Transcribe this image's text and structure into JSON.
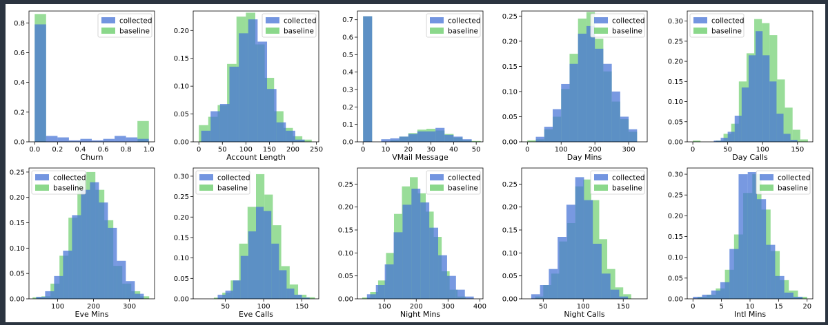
{
  "chart_data": [
    {
      "type": "bar",
      "xlabel": "Churn",
      "xlim": [
        -0.05,
        1.05
      ],
      "ylim": [
        0,
        0.88
      ],
      "xticks": [
        0.0,
        0.2,
        0.4,
        0.6,
        0.8,
        1.0
      ],
      "xtick_labels": [
        "0.0",
        "0.2",
        "0.4",
        "0.6",
        "0.8",
        "1.0"
      ],
      "yticks": [
        0.0,
        0.2,
        0.4,
        0.6,
        0.8
      ],
      "ytick_labels": [
        "0.0",
        "0.2",
        "0.4",
        "0.6",
        "0.8"
      ],
      "legend": "top-right",
      "series": [
        {
          "name": "collected",
          "bin_width": 0.1,
          "bins": [
            0,
            0.1,
            0.2,
            0.3,
            0.4,
            0.5,
            0.6,
            0.7,
            0.8,
            0.9
          ],
          "values": [
            0.79,
            0.04,
            0.03,
            0.01,
            0.02,
            0.01,
            0.02,
            0.04,
            0.03,
            0.02
          ]
        },
        {
          "name": "baseline",
          "bin_width": 0.1,
          "bins": [
            0,
            0.1,
            0.2,
            0.3,
            0.4,
            0.5,
            0.6,
            0.7,
            0.8,
            0.9
          ],
          "values": [
            0.86,
            0,
            0,
            0,
            0,
            0,
            0,
            0,
            0,
            0.14
          ]
        }
      ]
    },
    {
      "type": "bar",
      "xlabel": "Account Length",
      "xlim": [
        -12,
        255
      ],
      "ylim": [
        0,
        0.235
      ],
      "xticks": [
        0,
        50,
        100,
        150,
        200,
        250
      ],
      "xtick_labels": [
        "0",
        "50",
        "100",
        "150",
        "200",
        "250"
      ],
      "yticks": [
        0.0,
        0.05,
        0.1,
        0.15,
        0.2
      ],
      "ytick_labels": [
        "0.00",
        "0.05",
        "0.10",
        "0.15",
        "0.20"
      ],
      "legend": "top-right",
      "series": [
        {
          "name": "collected",
          "bin_width": 20,
          "bins": [
            5,
            25,
            45,
            65,
            85,
            105,
            125,
            145,
            165,
            185,
            205
          ],
          "values": [
            0.02,
            0.055,
            0.068,
            0.135,
            0.195,
            0.22,
            0.18,
            0.095,
            0.035,
            0.02,
            0.004
          ]
        },
        {
          "name": "baseline",
          "bin_width": 20,
          "bins": [
            0,
            20,
            40,
            60,
            80,
            100,
            120,
            140,
            160,
            180,
            200,
            220
          ],
          "values": [
            0.03,
            0.045,
            0.066,
            0.14,
            0.225,
            0.232,
            0.175,
            0.115,
            0.055,
            0.025,
            0.01,
            0.004
          ]
        }
      ]
    },
    {
      "type": "bar",
      "xlabel": "VMail Message",
      "xlim": [
        -2.5,
        53
      ],
      "ylim": [
        0,
        0.75
      ],
      "xticks": [
        0,
        10,
        20,
        30,
        40,
        50
      ],
      "xtick_labels": [
        "0",
        "10",
        "20",
        "30",
        "40",
        "50"
      ],
      "yticks": [
        0.0,
        0.1,
        0.2,
        0.3,
        0.4,
        0.5,
        0.6,
        0.7
      ],
      "ytick_labels": [
        "0.0",
        "0.1",
        "0.2",
        "0.3",
        "0.4",
        "0.5",
        "0.6",
        "0.7"
      ],
      "legend": "top-right",
      "series": [
        {
          "name": "collected",
          "bin_width": 4,
          "bins": [
            0,
            4,
            8,
            12,
            16,
            20,
            24,
            28,
            32,
            36,
            40,
            44
          ],
          "values": [
            0.72,
            0,
            0.015,
            0.02,
            0.03,
            0.045,
            0.06,
            0.06,
            0.08,
            0.04,
            0.03,
            0.015
          ]
        },
        {
          "name": "baseline",
          "bin_width": 4,
          "bins": [
            0,
            4,
            8,
            12,
            16,
            20,
            24,
            28,
            32,
            36,
            40,
            44,
            48
          ],
          "values": [
            0.72,
            0,
            0,
            0.01,
            0.03,
            0.05,
            0.07,
            0.075,
            0.065,
            0.045,
            0.025,
            0.01,
            0.005
          ]
        }
      ]
    },
    {
      "type": "bar",
      "xlabel": "Day Mins",
      "xlim": [
        -17,
        355
      ],
      "ylim": [
        0,
        0.26
      ],
      "xticks": [
        0,
        100,
        200,
        300
      ],
      "xtick_labels": [
        "0",
        "100",
        "200",
        "300"
      ],
      "yticks": [
        0.0,
        0.05,
        0.1,
        0.15,
        0.2,
        0.25
      ],
      "ytick_labels": [
        "0.00",
        "0.05",
        "0.10",
        "0.15",
        "0.20",
        "0.25"
      ],
      "legend": "top-right",
      "series": [
        {
          "name": "collected",
          "bin_width": 25,
          "bins": [
            25,
            50,
            75,
            100,
            125,
            150,
            175,
            200,
            225,
            250,
            275,
            300
          ],
          "values": [
            0.01,
            0.03,
            0.065,
            0.115,
            0.155,
            0.215,
            0.23,
            0.185,
            0.155,
            0.1,
            0.05,
            0.025
          ]
        },
        {
          "name": "baseline",
          "bin_width": 25,
          "bins": [
            0,
            25,
            50,
            75,
            100,
            125,
            150,
            175,
            200,
            225,
            250,
            275,
            300
          ],
          "values": [
            0.003,
            0.005,
            0.025,
            0.05,
            0.105,
            0.175,
            0.245,
            0.258,
            0.205,
            0.14,
            0.08,
            0.045,
            0.02
          ]
        }
      ]
    },
    {
      "type": "bar",
      "xlabel": "Day Calls",
      "xlim": [
        -8,
        172
      ],
      "ylim": [
        0,
        0.325
      ],
      "xticks": [
        0,
        50,
        100,
        150
      ],
      "xtick_labels": [
        "0",
        "50",
        "100",
        "150"
      ],
      "yticks": [
        0.0,
        0.05,
        0.1,
        0.15,
        0.2,
        0.25,
        0.3
      ],
      "ytick_labels": [
        "0.00",
        "0.05",
        "0.10",
        "0.15",
        "0.20",
        "0.25",
        "0.30"
      ],
      "legend": "top-left",
      "series": [
        {
          "name": "collected",
          "bin_width": 10,
          "bins": [
            30,
            40,
            50,
            60,
            70,
            80,
            90,
            100,
            110,
            120,
            130,
            140
          ],
          "values": [
            0.003,
            0.01,
            0.025,
            0.065,
            0.135,
            0.215,
            0.275,
            0.215,
            0.15,
            0.07,
            0.02,
            0.005
          ]
        },
        {
          "name": "baseline",
          "bin_width": 11,
          "bins": [
            0,
            11,
            22,
            33,
            44,
            55,
            66,
            77,
            88,
            99,
            110,
            121,
            132,
            143,
            154
          ],
          "values": [
            0.003,
            0,
            0,
            0.003,
            0.02,
            0.045,
            0.15,
            0.22,
            0.305,
            0.295,
            0.265,
            0.155,
            0.085,
            0.03,
            0.006
          ]
        }
      ]
    },
    {
      "type": "bar",
      "xlabel": "Eve Mins",
      "xlim": [
        20,
        370
      ],
      "ylim": [
        0,
        0.258
      ],
      "xticks": [
        100,
        200,
        300
      ],
      "xtick_labels": [
        "100",
        "200",
        "300"
      ],
      "yticks": [
        0.0,
        0.05,
        0.1,
        0.15,
        0.2,
        0.25
      ],
      "ytick_labels": [
        "0.00",
        "0.05",
        "0.10",
        "0.15",
        "0.20",
        "0.25"
      ],
      "legend": "top-left",
      "series": [
        {
          "name": "collected",
          "bin_width": 25,
          "bins": [
            40,
            65,
            90,
            115,
            140,
            165,
            190,
            215,
            240,
            265,
            290,
            315
          ],
          "values": [
            0.004,
            0.015,
            0.045,
            0.095,
            0.165,
            0.215,
            0.23,
            0.19,
            0.14,
            0.075,
            0.035,
            0.01
          ]
        },
        {
          "name": "baseline",
          "bin_width": 25,
          "bins": [
            30,
            55,
            80,
            105,
            130,
            155,
            180,
            205,
            230,
            255,
            280,
            305,
            330
          ],
          "values": [
            0.003,
            0.005,
            0.03,
            0.085,
            0.16,
            0.235,
            0.25,
            0.215,
            0.155,
            0.065,
            0.03,
            0.015,
            0.005
          ]
        }
      ]
    },
    {
      "type": "bar",
      "xlabel": "Eve Calls",
      "xlim": [
        8,
        172
      ],
      "ylim": [
        0,
        0.32
      ],
      "xticks": [
        50,
        100,
        150
      ],
      "xtick_labels": [
        "50",
        "100",
        "150"
      ],
      "yticks": [
        0.0,
        0.05,
        0.1,
        0.15,
        0.2,
        0.25,
        0.3
      ],
      "ytick_labels": [
        "0.00",
        "0.05",
        "0.10",
        "0.15",
        "0.20",
        "0.25",
        "0.30"
      ],
      "legend": "top-left",
      "series": [
        {
          "name": "collected",
          "bin_width": 10,
          "bins": [
            40,
            50,
            60,
            70,
            80,
            90,
            100,
            110,
            120,
            130,
            140,
            150
          ],
          "values": [
            0.01,
            0.02,
            0.045,
            0.105,
            0.165,
            0.225,
            0.215,
            0.135,
            0.07,
            0.025,
            0.01,
            0.003
          ]
        },
        {
          "name": "baseline",
          "bin_width": 11,
          "bins": [
            35,
            46,
            57,
            68,
            79,
            90,
            101,
            112,
            123,
            134,
            145,
            156
          ],
          "values": [
            0.003,
            0.015,
            0.045,
            0.135,
            0.225,
            0.305,
            0.255,
            0.18,
            0.08,
            0.035,
            0.01,
            0.004
          ]
        }
      ]
    },
    {
      "type": "bar",
      "xlabel": "Night Mins",
      "xlim": [
        15,
        410
      ],
      "ylim": [
        0,
        0.285
      ],
      "xticks": [
        100,
        200,
        300,
        400
      ],
      "xtick_labels": [
        "100",
        "200",
        "300",
        "400"
      ],
      "yticks": [
        0.0,
        0.05,
        0.1,
        0.15,
        0.2,
        0.25
      ],
      "ytick_labels": [
        "0.00",
        "0.05",
        "0.10",
        "0.15",
        "0.20",
        "0.25"
      ],
      "legend": "top-right",
      "series": [
        {
          "name": "collected",
          "bin_width": 28,
          "bins": [
            45,
            73,
            101,
            129,
            157,
            185,
            213,
            241,
            269,
            297,
            325,
            353
          ],
          "values": [
            0.01,
            0.03,
            0.075,
            0.145,
            0.205,
            0.24,
            0.21,
            0.155,
            0.095,
            0.05,
            0.02,
            0.005
          ]
        },
        {
          "name": "baseline",
          "bin_width": 25,
          "bins": [
            30,
            55,
            80,
            105,
            130,
            155,
            180,
            205,
            230,
            255,
            280,
            305,
            330
          ],
          "values": [
            0.003,
            0.015,
            0.04,
            0.1,
            0.185,
            0.245,
            0.265,
            0.23,
            0.19,
            0.135,
            0.06,
            0.02,
            0.005
          ]
        }
      ]
    },
    {
      "type": "bar",
      "xlabel": "Night Calls",
      "xlim": [
        23,
        180
      ],
      "ylim": [
        0,
        0.285
      ],
      "xticks": [
        50,
        100,
        150
      ],
      "xtick_labels": [
        "50",
        "100",
        "150"
      ],
      "yticks": [
        0.0,
        0.05,
        0.1,
        0.15,
        0.2,
        0.25
      ],
      "ytick_labels": [
        "0.00",
        "0.05",
        "0.10",
        "0.15",
        "0.20",
        "0.25"
      ],
      "legend": "top-right",
      "series": [
        {
          "name": "collected",
          "bin_width": 11,
          "bins": [
            35,
            46,
            57,
            68,
            79,
            90,
            101,
            112,
            123,
            134,
            145
          ],
          "values": [
            0.01,
            0.03,
            0.065,
            0.135,
            0.205,
            0.265,
            0.215,
            0.12,
            0.055,
            0.02,
            0.005
          ]
        },
        {
          "name": "baseline",
          "bin_width": 10,
          "bins": [
            40,
            50,
            60,
            70,
            80,
            90,
            100,
            110,
            120,
            130,
            140,
            150
          ],
          "values": [
            0.005,
            0.03,
            0.055,
            0.125,
            0.165,
            0.245,
            0.26,
            0.215,
            0.13,
            0.065,
            0.025,
            0.01
          ]
        }
      ]
    },
    {
      "type": "bar",
      "xlabel": "Intl Mins",
      "xlim": [
        -1,
        21
      ],
      "ylim": [
        0,
        0.315
      ],
      "xticks": [
        0,
        5,
        10,
        15,
        20
      ],
      "xtick_labels": [
        "0",
        "5",
        "10",
        "15",
        "20"
      ],
      "yticks": [
        0.0,
        0.05,
        0.1,
        0.15,
        0.2,
        0.25,
        0.3
      ],
      "ytick_labels": [
        "0.00",
        "0.05",
        "0.10",
        "0.15",
        "0.20",
        "0.25",
        "0.30"
      ],
      "legend": "top-right",
      "series": [
        {
          "name": "collected",
          "bin_width": 1.6,
          "bins": [
            0,
            1.6,
            3.2,
            4.8,
            6.4,
            8,
            9.6,
            11.2,
            12.8,
            14.4,
            16,
            17.6
          ],
          "values": [
            0.005,
            0.01,
            0.02,
            0.04,
            0.12,
            0.3,
            0.305,
            0.24,
            0.13,
            0.055,
            0.015,
            0.005
          ]
        },
        {
          "name": "baseline",
          "bin_width": 1.6,
          "bins": [
            0.8,
            2.4,
            4,
            5.6,
            7.2,
            8.8,
            10.4,
            12,
            13.6,
            15.2,
            16.8,
            18.4
          ],
          "values": [
            0.005,
            0.01,
            0.025,
            0.07,
            0.155,
            0.255,
            0.3,
            0.215,
            0.115,
            0.045,
            0.02,
            0.005
          ]
        }
      ]
    }
  ],
  "colors": {
    "collected": "#4472d6",
    "baseline": "#5ac85a",
    "overlap": "#6bbf8f"
  }
}
